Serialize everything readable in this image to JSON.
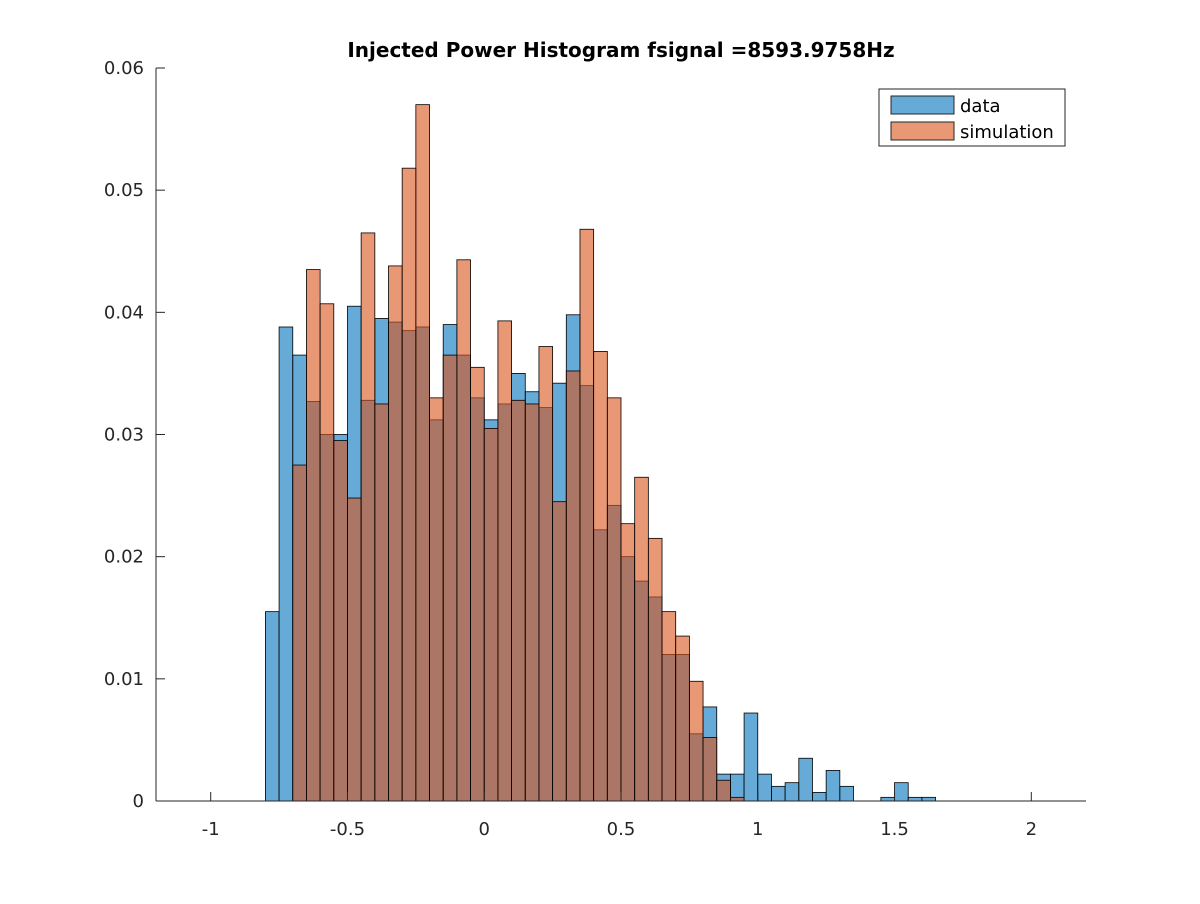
{
  "chart_data": {
    "type": "bar",
    "title": "Injected Power Histogram fsignal =8593.9758Hz",
    "xlabel": "",
    "ylabel": "",
    "xlim": [
      -1.2,
      2.2
    ],
    "ylim": [
      0,
      0.06
    ],
    "x_ticks": [
      -1,
      -0.5,
      0,
      0.5,
      1,
      1.5,
      2
    ],
    "x_tick_labels": [
      "-1",
      "-0.5",
      "0",
      "0.5",
      "1",
      "1.5",
      "2"
    ],
    "y_ticks": [
      0,
      0.01,
      0.02,
      0.03,
      0.04,
      0.05,
      0.06
    ],
    "y_tick_labels": [
      "0",
      "0.01",
      "0.02",
      "0.03",
      "0.04",
      "0.05",
      "0.06"
    ],
    "bin_width": 0.05,
    "bin_start": -0.8,
    "legend_position": "top-right",
    "grid": false,
    "series": [
      {
        "name": "data",
        "color": "#0072BD",
        "opacity": 0.6,
        "values": [
          0.0155,
          0.0388,
          0.0365,
          0.0327,
          0.03,
          0.03,
          0.0405,
          0.0328,
          0.0395,
          0.0392,
          0.0385,
          0.0388,
          0.0312,
          0.039,
          0.0365,
          0.033,
          0.0312,
          0.0325,
          0.035,
          0.0335,
          0.0322,
          0.0342,
          0.0398,
          0.034,
          0.0222,
          0.0242,
          0.02,
          0.018,
          0.0167,
          0.012,
          0.012,
          0.0055,
          0.0077,
          0.0022,
          0.0022,
          0.0072,
          0.0022,
          0.0012,
          0.0015,
          0.0035,
          0.0007,
          0.0025,
          0.0012,
          0,
          0,
          0.0003,
          0.0015,
          0.0003,
          0.0003
        ]
      },
      {
        "name": "simulation",
        "color": "#D95319",
        "opacity": 0.6,
        "values": [
          0,
          0,
          0.0275,
          0.0435,
          0.0407,
          0.0295,
          0.0248,
          0.0465,
          0.0325,
          0.0438,
          0.0518,
          0.057,
          0.033,
          0.0365,
          0.0443,
          0.0355,
          0.0305,
          0.0393,
          0.0328,
          0.0325,
          0.0372,
          0.0245,
          0.0352,
          0.0468,
          0.0368,
          0.033,
          0.0227,
          0.0265,
          0.0215,
          0.0155,
          0.0135,
          0.0098,
          0.0052,
          0.0017,
          0.0003,
          0,
          0,
          0,
          0,
          0,
          0,
          0,
          0,
          0,
          0,
          0,
          0,
          0,
          0
        ]
      }
    ]
  }
}
